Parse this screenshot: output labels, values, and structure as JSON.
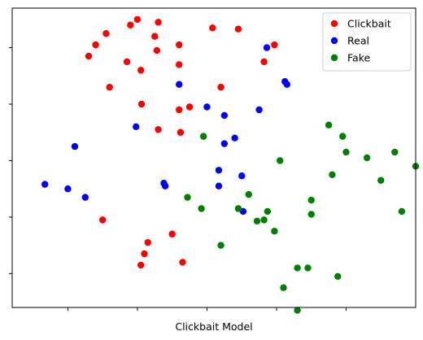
{
  "chart_data": {
    "type": "scatter",
    "title": "",
    "xlabel": "Clickbait Model",
    "ylabel": "",
    "xlim": [
      -2.8,
      3.0
    ],
    "ylim": [
      -2.6,
      2.7
    ],
    "x_ticks": [
      -2,
      -1,
      0,
      1,
      2
    ],
    "y_ticks": [
      -2,
      -1,
      0,
      1,
      2
    ],
    "tick_labels_visible": false,
    "grid": false,
    "legend_position": "top-right",
    "series": [
      {
        "name": "Clickbait",
        "color": "#ff0000",
        "points": [
          [
            -1.0,
            2.5
          ],
          [
            -0.7,
            2.45
          ],
          [
            -1.1,
            2.4
          ],
          [
            -1.45,
            2.25
          ],
          [
            -0.75,
            2.2
          ],
          [
            0.08,
            2.35
          ],
          [
            0.45,
            2.33
          ],
          [
            -1.6,
            2.05
          ],
          [
            -1.7,
            1.85
          ],
          [
            -0.72,
            1.95
          ],
          [
            -0.4,
            2.05
          ],
          [
            0.97,
            2.05
          ],
          [
            -1.15,
            1.75
          ],
          [
            -0.4,
            1.7
          ],
          [
            0.82,
            1.75
          ],
          [
            -0.95,
            1.6
          ],
          [
            -1.4,
            1.3
          ],
          [
            0.2,
            1.3
          ],
          [
            -0.25,
            0.95
          ],
          [
            -0.94,
            1.0
          ],
          [
            -0.4,
            0.9
          ],
          [
            -0.7,
            0.55
          ],
          [
            -0.38,
            0.5
          ],
          [
            -1.5,
            -1.05
          ],
          [
            -0.85,
            -1.45
          ],
          [
            -0.5,
            -1.3
          ],
          [
            -0.9,
            -1.65
          ],
          [
            -0.35,
            -1.8
          ],
          [
            -0.95,
            -1.85
          ]
        ]
      },
      {
        "name": "Real",
        "color": "#0000ff",
        "points": [
          [
            0.86,
            2.0
          ],
          [
            1.12,
            1.4
          ],
          [
            1.15,
            1.35
          ],
          [
            -0.4,
            1.35
          ],
          [
            0.0,
            0.95
          ],
          [
            0.75,
            0.9
          ],
          [
            0.25,
            0.8
          ],
          [
            -1.02,
            0.6
          ],
          [
            0.4,
            0.4
          ],
          [
            0.25,
            0.3
          ],
          [
            -1.9,
            0.25
          ],
          [
            0.17,
            -0.17
          ],
          [
            0.5,
            -0.27
          ],
          [
            -0.62,
            -0.4
          ],
          [
            0.17,
            -0.45
          ],
          [
            -2.33,
            -0.42
          ],
          [
            -0.6,
            -0.45
          ],
          [
            -2.0,
            -0.5
          ],
          [
            -1.75,
            -0.65
          ],
          [
            0.52,
            -0.9
          ]
        ]
      },
      {
        "name": "Fake",
        "color": "#008000",
        "points": [
          [
            1.75,
            0.63
          ],
          [
            1.95,
            0.43
          ],
          [
            -0.05,
            0.43
          ],
          [
            2.0,
            0.15
          ],
          [
            2.7,
            0.15
          ],
          [
            1.05,
            0.0
          ],
          [
            2.3,
            0.05
          ],
          [
            1.8,
            -0.25
          ],
          [
            3.0,
            -0.1
          ],
          [
            3.25,
            0.0
          ],
          [
            2.5,
            -0.35
          ],
          [
            3.32,
            -0.55
          ],
          [
            -0.28,
            -0.65
          ],
          [
            0.6,
            -0.6
          ],
          [
            1.5,
            -0.7
          ],
          [
            -0.08,
            -0.85
          ],
          [
            0.45,
            -0.85
          ],
          [
            0.87,
            -0.9
          ],
          [
            2.8,
            -0.9
          ],
          [
            1.5,
            -0.95
          ],
          [
            0.72,
            -1.07
          ],
          [
            0.82,
            -1.05
          ],
          [
            0.97,
            -1.25
          ],
          [
            0.2,
            -1.5
          ],
          [
            1.3,
            -1.9
          ],
          [
            1.45,
            -1.9
          ],
          [
            1.88,
            -2.05
          ],
          [
            1.1,
            -2.25
          ],
          [
            1.3,
            -2.65
          ]
        ]
      }
    ]
  }
}
